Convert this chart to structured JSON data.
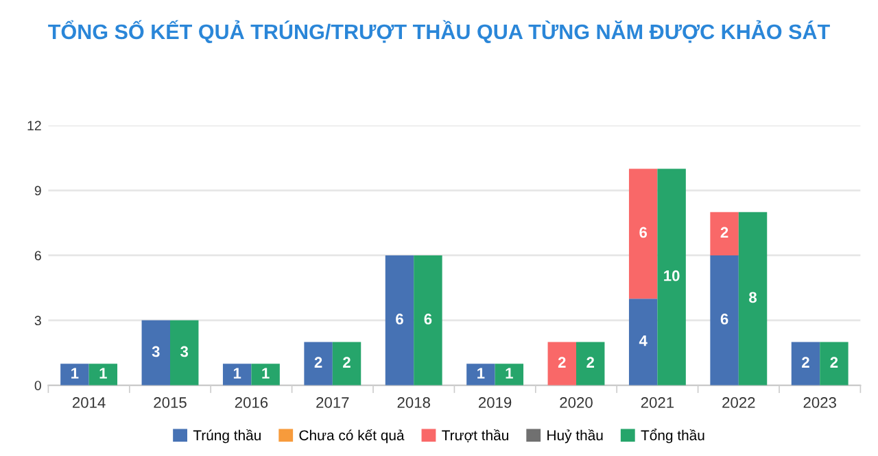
{
  "chart_data": {
    "type": "bar",
    "title": "TỔNG SỐ KẾT QUẢ TRÚNG/TRƯỢT THẦU QUA TỪNG NĂM ĐƯỢC KHẢO SÁT",
    "categories": [
      "2014",
      "2015",
      "2016",
      "2017",
      "2018",
      "2019",
      "2020",
      "2021",
      "2022",
      "2023"
    ],
    "stacked": true,
    "series": [
      {
        "name": "Trúng thầu",
        "color": "#4672b4",
        "values": [
          1,
          3,
          1,
          2,
          6,
          1,
          0,
          4,
          6,
          2
        ],
        "value_labels": [
          "1",
          "3",
          "1",
          "2",
          "6",
          "1",
          null,
          "4",
          "6",
          "2"
        ]
      },
      {
        "name": "Chưa có kết quả",
        "color": "#f79b3c",
        "values": [
          0,
          0,
          0,
          0,
          0,
          0,
          0,
          0,
          0,
          0
        ],
        "value_labels": [
          null,
          null,
          null,
          null,
          null,
          null,
          null,
          null,
          null,
          null
        ]
      },
      {
        "name": "Trượt thầu",
        "color": "#f96868",
        "values": [
          0,
          0,
          0,
          0,
          0,
          0,
          2,
          6,
          2,
          0
        ],
        "value_labels": [
          null,
          null,
          null,
          null,
          null,
          null,
          "2",
          "6",
          "2",
          null
        ]
      },
      {
        "name": "Huỷ thầu",
        "color": "#707070",
        "values": [
          0,
          0,
          0,
          0,
          0,
          0,
          0,
          0,
          0,
          0
        ],
        "value_labels": [
          null,
          null,
          null,
          null,
          null,
          null,
          null,
          null,
          null,
          null
        ]
      },
      {
        "name": "Tổng thầu",
        "color": "#26a56b",
        "axis": "y2",
        "values": [
          1,
          3,
          1,
          2,
          6,
          1,
          2,
          10,
          8,
          2
        ],
        "value_labels": [
          "1",
          "3",
          "1",
          "2",
          "6",
          "1",
          "2",
          "10",
          "8",
          "2"
        ]
      }
    ],
    "ylim": [
      0,
      12
    ],
    "yticks": [
      0,
      3,
      6,
      9,
      12
    ],
    "grid": "y",
    "legend": "bottom"
  }
}
